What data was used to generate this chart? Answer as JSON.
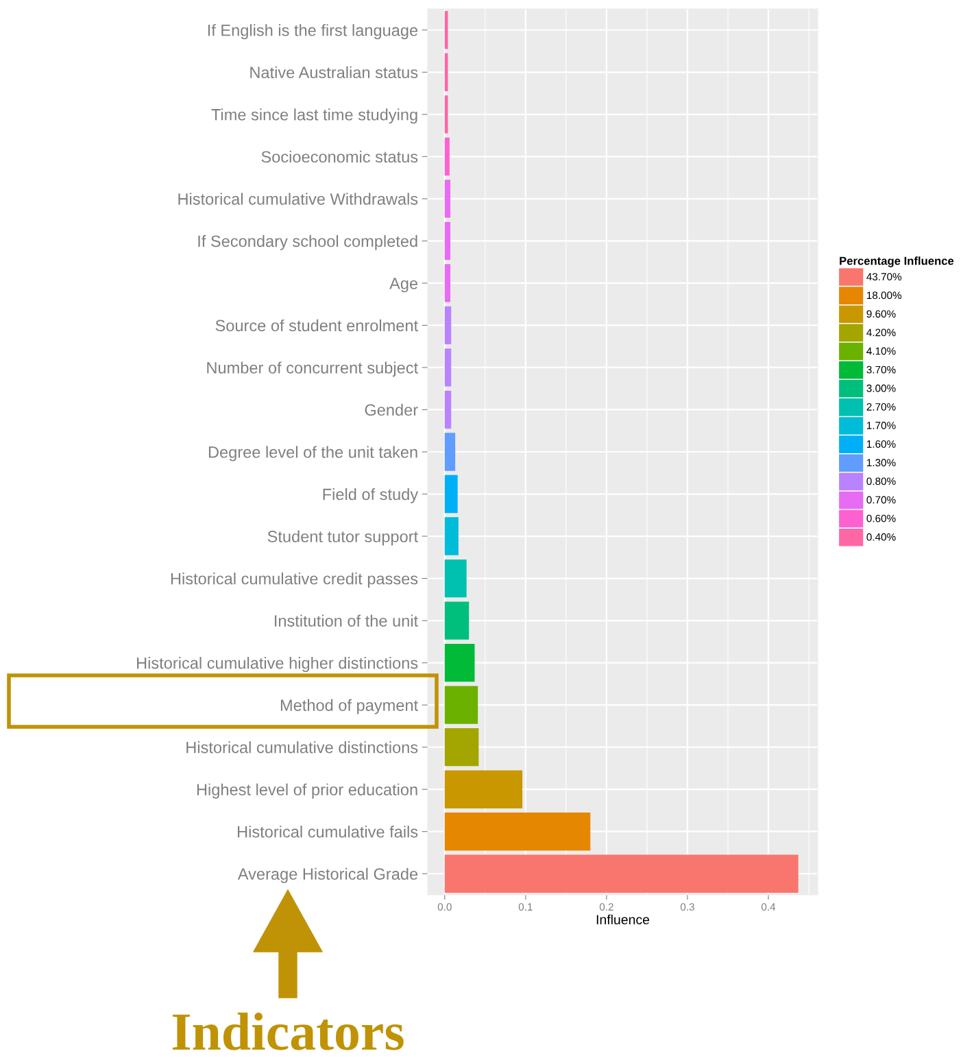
{
  "chart_data": {
    "type": "bar",
    "orientation": "horizontal",
    "categories": [
      "If English is the first language",
      "Native Australian status",
      "Time since last time studying",
      "Socioeconomic status",
      "Historical cumulative Withdrawals",
      "If Secondary school completed",
      "Age",
      "Source of student enrolment",
      "Number of concurrent subject",
      "Gender",
      "Degree level of the unit taken",
      "Field of study",
      "Student tutor support",
      "Historical cumulative credit passes",
      "Institution of the unit",
      "Historical cumulative higher distinctions",
      "Method of payment",
      "Historical cumulative distinctions",
      "Highest level of prior education",
      "Historical cumulative fails",
      "Average Historical Grade"
    ],
    "series": [
      {
        "name": "43.70%",
        "color": "#f8766d",
        "values": [
          null,
          null,
          null,
          null,
          null,
          null,
          null,
          null,
          null,
          null,
          null,
          null,
          null,
          null,
          null,
          null,
          null,
          null,
          null,
          null,
          0.437
        ]
      },
      {
        "name": "18.00%",
        "color": "#e58700",
        "values": [
          null,
          null,
          null,
          null,
          null,
          null,
          null,
          null,
          null,
          null,
          null,
          null,
          null,
          null,
          null,
          null,
          null,
          null,
          null,
          0.18,
          null
        ]
      },
      {
        "name": "9.60%",
        "color": "#c99800",
        "values": [
          null,
          null,
          null,
          null,
          null,
          null,
          null,
          null,
          null,
          null,
          null,
          null,
          null,
          null,
          null,
          null,
          null,
          null,
          0.096,
          null,
          null
        ]
      },
      {
        "name": "4.20%",
        "color": "#a3a500",
        "values": [
          null,
          null,
          null,
          null,
          null,
          null,
          null,
          null,
          null,
          null,
          null,
          null,
          null,
          null,
          null,
          null,
          null,
          0.042,
          null,
          null,
          null
        ]
      },
      {
        "name": "4.10%",
        "color": "#6bb100",
        "values": [
          null,
          null,
          null,
          null,
          null,
          null,
          null,
          null,
          null,
          null,
          null,
          null,
          null,
          null,
          null,
          null,
          0.041,
          null,
          null,
          null,
          null
        ]
      },
      {
        "name": "3.70%",
        "color": "#00ba38",
        "values": [
          null,
          null,
          null,
          null,
          null,
          null,
          null,
          null,
          null,
          null,
          null,
          null,
          null,
          null,
          null,
          0.037,
          null,
          null,
          null,
          null,
          null
        ]
      },
      {
        "name": "3.00%",
        "color": "#00bf7d",
        "values": [
          null,
          null,
          null,
          null,
          null,
          null,
          null,
          null,
          null,
          null,
          null,
          null,
          null,
          null,
          0.03,
          null,
          null,
          null,
          null,
          null,
          null
        ]
      },
      {
        "name": "2.70%",
        "color": "#00c0af",
        "values": [
          null,
          null,
          null,
          null,
          null,
          null,
          null,
          null,
          null,
          null,
          null,
          null,
          null,
          0.027,
          null,
          null,
          null,
          null,
          null,
          null,
          null
        ]
      },
      {
        "name": "1.70%",
        "color": "#00bcd8",
        "values": [
          null,
          null,
          null,
          null,
          null,
          null,
          null,
          null,
          null,
          null,
          null,
          null,
          0.017,
          null,
          null,
          null,
          null,
          null,
          null,
          null,
          null
        ]
      },
      {
        "name": "1.60%",
        "color": "#00b0f6",
        "values": [
          null,
          null,
          null,
          null,
          null,
          null,
          null,
          null,
          null,
          null,
          null,
          0.016,
          null,
          null,
          null,
          null,
          null,
          null,
          null,
          null,
          null
        ]
      },
      {
        "name": "1.30%",
        "color": "#619cff",
        "values": [
          null,
          null,
          null,
          null,
          null,
          null,
          null,
          null,
          null,
          null,
          0.013,
          null,
          null,
          null,
          null,
          null,
          null,
          null,
          null,
          null,
          null
        ]
      },
      {
        "name": "0.80%",
        "color": "#b983ff",
        "values": [
          null,
          null,
          null,
          null,
          null,
          null,
          null,
          0.008,
          0.008,
          0.008,
          null,
          null,
          null,
          null,
          null,
          null,
          null,
          null,
          null,
          null,
          null
        ]
      },
      {
        "name": "0.70%",
        "color": "#e76bf3",
        "values": [
          null,
          null,
          null,
          null,
          0.007,
          0.007,
          0.007,
          null,
          null,
          null,
          null,
          null,
          null,
          null,
          null,
          null,
          null,
          null,
          null,
          null,
          null
        ]
      },
      {
        "name": "0.60%",
        "color": "#fd61d1",
        "values": [
          null,
          null,
          null,
          0.006,
          null,
          null,
          null,
          null,
          null,
          null,
          null,
          null,
          null,
          null,
          null,
          null,
          null,
          null,
          null,
          null,
          null
        ]
      },
      {
        "name": "0.40%",
        "color": "#ff67a4",
        "values": [
          0.004,
          0.004,
          0.004,
          null,
          null,
          null,
          null,
          null,
          null,
          null,
          null,
          null,
          null,
          null,
          null,
          null,
          null,
          null,
          null,
          null,
          null
        ]
      }
    ],
    "xlabel": "Influence",
    "legend_title": "Percentage Influence",
    "legend": "right",
    "xlim": [
      -0.021,
      0.461
    ],
    "xticks": [
      {
        "value": 0,
        "label": "0.0"
      },
      {
        "value": 0.1,
        "label": "0.1"
      },
      {
        "value": 0.2,
        "label": "0.2"
      },
      {
        "value": 0.3,
        "label": "0.3"
      },
      {
        "value": 0.4,
        "label": "0.4"
      }
    ],
    "grid": true,
    "annotations": [
      "Indicators"
    ]
  }
}
